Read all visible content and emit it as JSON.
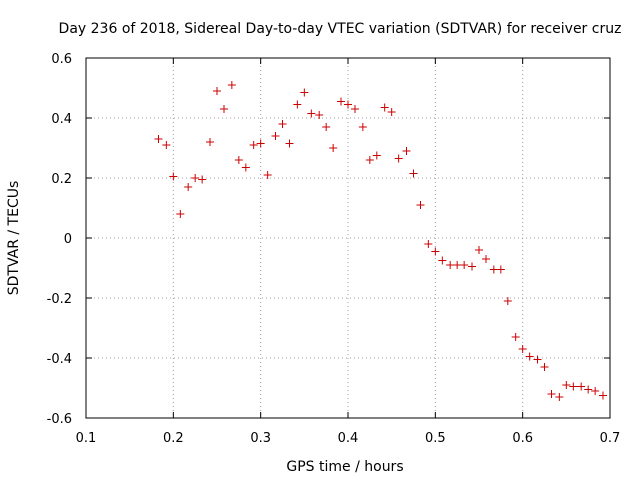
{
  "chart_data": {
    "type": "scatter",
    "title": "Day 236 of 2018, Sidereal Day-to-day VTEC variation (SDTVAR) for receiver cruz",
    "xlabel": "GPS time / hours",
    "ylabel": "SDTVAR / TECUs",
    "xlim": [
      0.1,
      0.7
    ],
    "ylim": [
      -0.6,
      0.6
    ],
    "xticks": [
      0.1,
      0.2,
      0.3,
      0.4,
      0.5,
      0.6,
      0.7
    ],
    "xtick_labels": [
      "0.1",
      "0.2",
      "0.3",
      "0.4",
      "0.5",
      "0.6",
      "0.7"
    ],
    "yticks": [
      -0.6,
      -0.4,
      -0.2,
      0,
      0.2,
      0.4,
      0.6
    ],
    "ytick_labels": [
      "-0.6",
      "-0.4",
      "-0.2",
      "0",
      "0.2",
      "0.4",
      "0.6"
    ],
    "grid": true,
    "marker": "+",
    "marker_color": "#cc0000",
    "series": [
      {
        "name": "SDTVAR",
        "x": [
          0.183,
          0.192,
          0.2,
          0.208,
          0.217,
          0.225,
          0.233,
          0.242,
          0.25,
          0.258,
          0.267,
          0.275,
          0.283,
          0.292,
          0.3,
          0.308,
          0.317,
          0.325,
          0.333,
          0.342,
          0.35,
          0.358,
          0.367,
          0.375,
          0.383,
          0.392,
          0.4,
          0.408,
          0.417,
          0.425,
          0.433,
          0.442,
          0.45,
          0.458,
          0.467,
          0.475,
          0.483,
          0.492,
          0.5,
          0.508,
          0.517,
          0.525,
          0.533,
          0.542,
          0.55,
          0.558,
          0.567,
          0.575,
          0.583,
          0.592,
          0.6,
          0.608,
          0.617,
          0.625,
          0.633,
          0.642,
          0.65,
          0.658,
          0.667,
          0.675,
          0.683,
          0.692
        ],
        "y": [
          0.33,
          0.31,
          0.205,
          0.08,
          0.17,
          0.2,
          0.195,
          0.32,
          0.49,
          0.43,
          0.51,
          0.26,
          0.235,
          0.31,
          0.315,
          0.21,
          0.34,
          0.38,
          0.315,
          0.445,
          0.485,
          0.415,
          0.41,
          0.37,
          0.3,
          0.455,
          0.445,
          0.43,
          0.37,
          0.26,
          0.275,
          0.435,
          0.42,
          0.265,
          0.29,
          0.215,
          0.11,
          -0.02,
          -0.045,
          -0.075,
          -0.09,
          -0.09,
          -0.09,
          -0.095,
          -0.04,
          -0.07,
          -0.105,
          -0.105,
          -0.21,
          -0.33,
          -0.37,
          -0.395,
          -0.405,
          -0.43,
          -0.52,
          -0.53,
          -0.49,
          -0.495,
          -0.495,
          -0.505,
          -0.51,
          -0.525
        ]
      }
    ]
  }
}
